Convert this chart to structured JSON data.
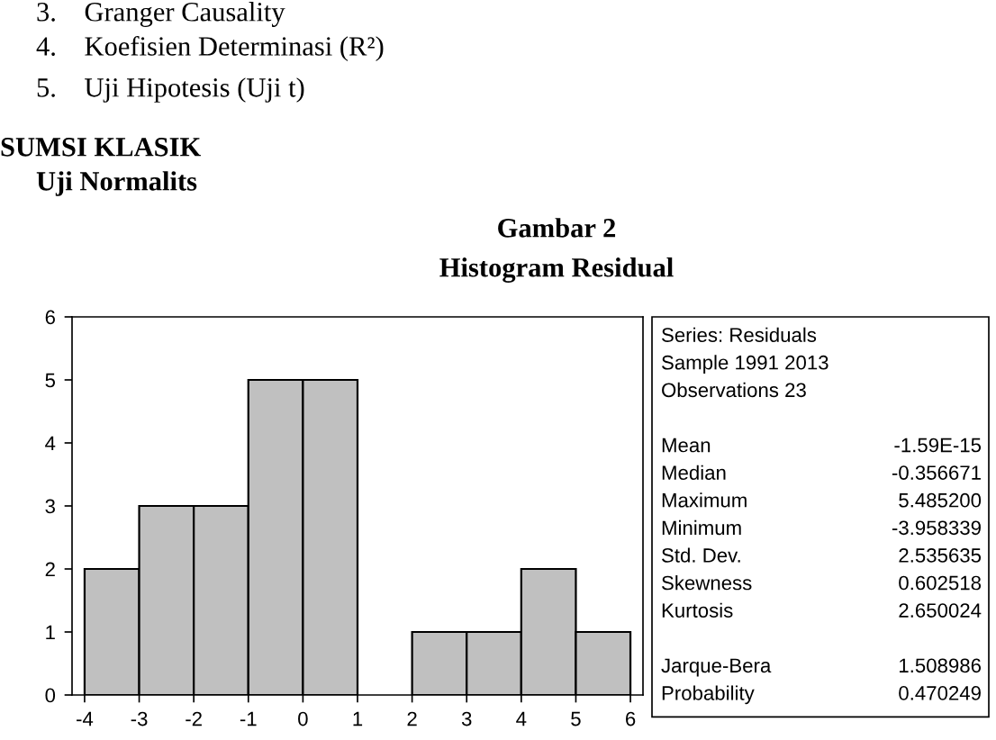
{
  "chart_data": {
    "type": "histogram",
    "title": "Gambar 2",
    "subtitle": "Histogram Residual",
    "bins": [
      -4,
      -3,
      -2,
      -1,
      0,
      1,
      2,
      3,
      4,
      5,
      6
    ],
    "values": [
      2,
      3,
      3,
      5,
      5,
      0,
      1,
      1,
      2,
      1
    ],
    "color": "#c0c0c0",
    "xlim": [
      -4.23,
      6.23
    ],
    "ylim": [
      0,
      6
    ],
    "xticks": [
      -4,
      -3,
      -2,
      -1,
      0,
      1,
      2,
      3,
      4,
      5,
      6
    ],
    "yticks": [
      0,
      1,
      2,
      3,
      4,
      5,
      6
    ],
    "grid": false,
    "annotations": [
      "3.    Granger Causality",
      "4.    Koefisien Determinasi (R²)",
      "5.    Uji Hipotesis (Uji t)",
      "SUMSI KLASIK",
      "Uji Normalits",
      "Series: Residuals",
      "Sample 1991 2013",
      "Observations 23",
      "Mean\t-1.59E-15",
      "Median\t-0.356671",
      "Maximum\t5.485200",
      "Minimum\t-3.958339",
      "Std. Dev.\t2.535635",
      "Skewness\t0.602518",
      "Kurtosis\t2.650024",
      "Jarque-Bera\t1.508986",
      "Probability\t0.470249"
    ]
  }
}
